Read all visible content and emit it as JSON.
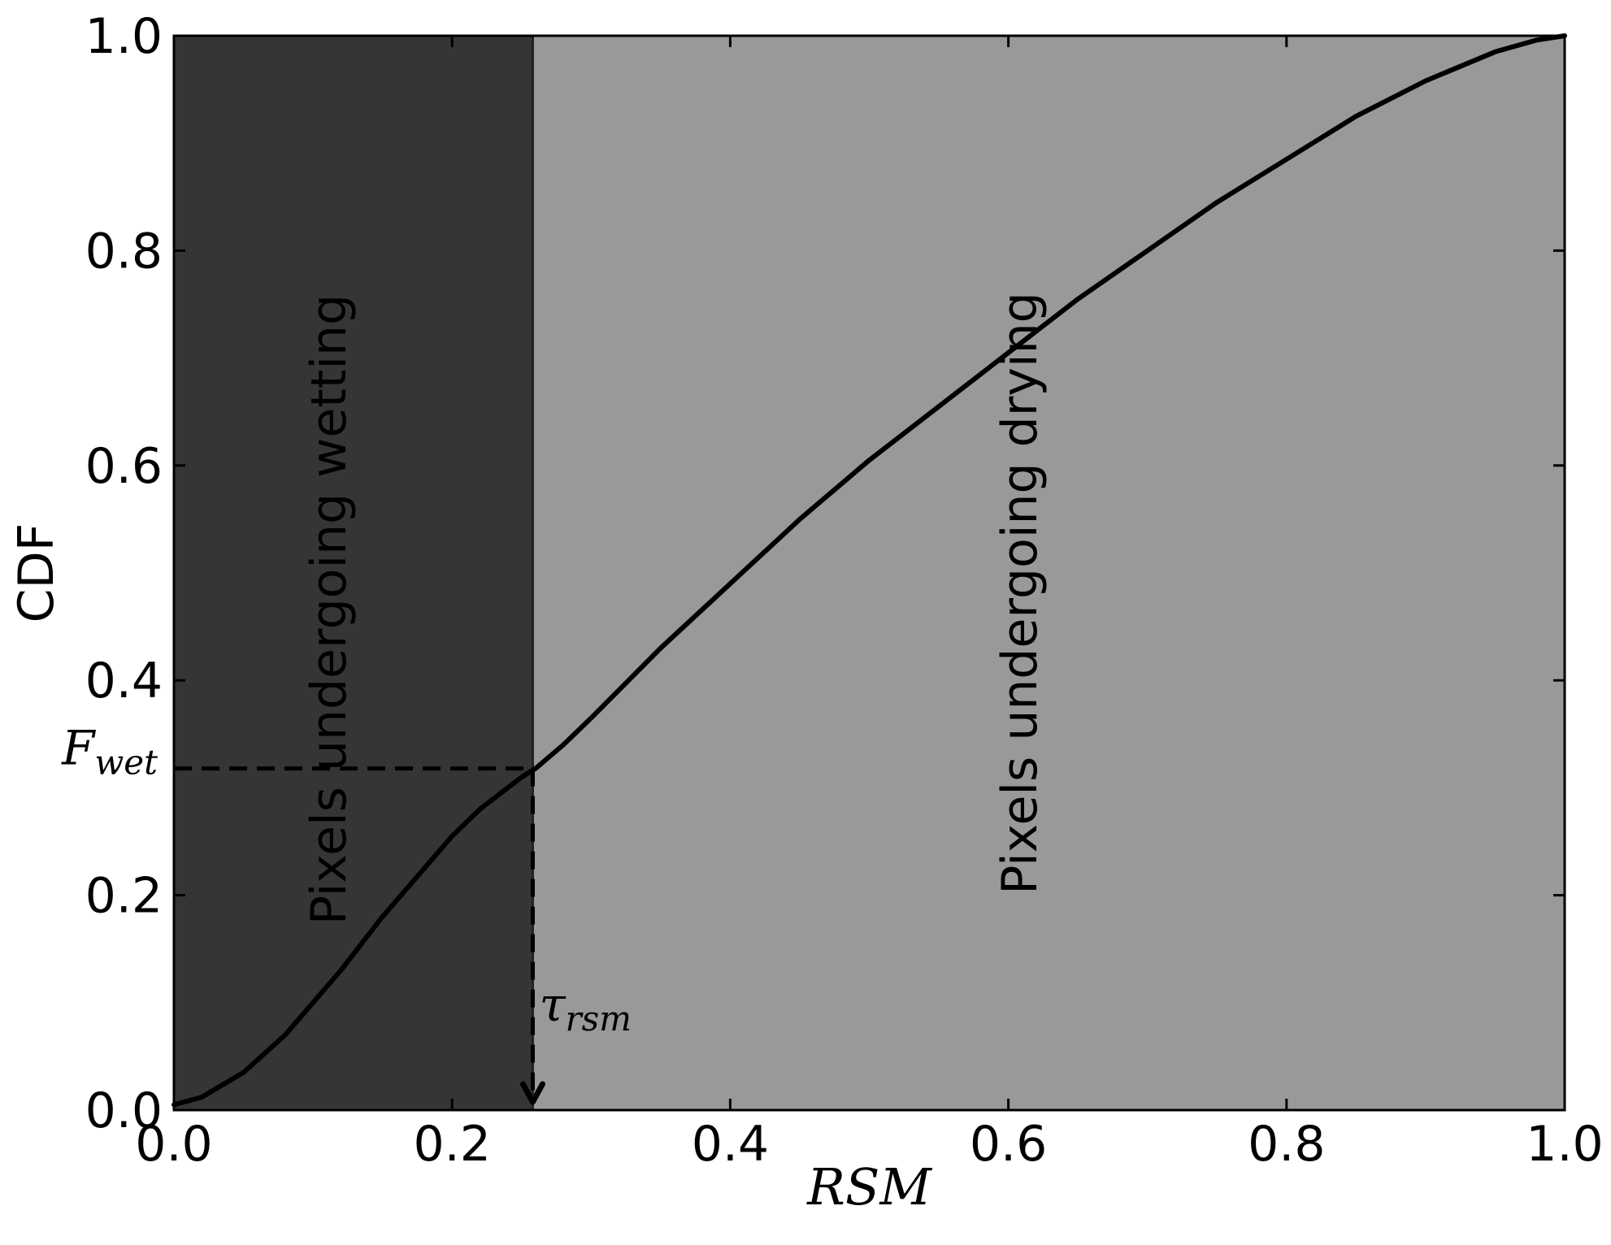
{
  "chart_data": {
    "type": "line",
    "title": "",
    "xlabel": "RSM",
    "ylabel": "CDF",
    "xlim": [
      0.0,
      1.0
    ],
    "ylim": [
      0.0,
      1.0
    ],
    "xticks": [
      "0.0",
      "0.2",
      "0.4",
      "0.6",
      "0.8",
      "1.0"
    ],
    "yticks": [
      "0.0",
      "0.2",
      "0.4",
      "0.6",
      "0.8",
      "1.0"
    ],
    "grid": false,
    "series": [
      {
        "x": [
          0.0,
          0.02,
          0.05,
          0.08,
          0.1,
          0.12,
          0.15,
          0.18,
          0.2,
          0.22,
          0.25,
          0.26,
          0.28,
          0.3,
          0.35,
          0.4,
          0.45,
          0.5,
          0.55,
          0.6,
          0.65,
          0.7,
          0.75,
          0.8,
          0.85,
          0.9,
          0.95,
          0.98,
          1.0
        ],
        "y": [
          0.005,
          0.012,
          0.035,
          0.07,
          0.1,
          0.13,
          0.18,
          0.225,
          0.255,
          0.28,
          0.31,
          0.318,
          0.34,
          0.365,
          0.43,
          0.49,
          0.55,
          0.605,
          0.655,
          0.705,
          0.755,
          0.8,
          0.845,
          0.885,
          0.925,
          0.958,
          0.985,
          0.996,
          1.0
        ],
        "color": "#000000"
      }
    ],
    "regions": [
      {
        "label": "Pixels undergoing wetting",
        "x_range": [
          0.0,
          0.258
        ],
        "color": "#353535"
      },
      {
        "label": "Pixels undergoing drying",
        "x_range": [
          0.258,
          1.0
        ],
        "color": "#999999"
      }
    ],
    "threshold": {
      "x": 0.258,
      "y": 0.318,
      "x_label_base": "τ",
      "x_label_sub": "rsm",
      "y_label_base": "F",
      "y_label_sub": "wet"
    }
  }
}
